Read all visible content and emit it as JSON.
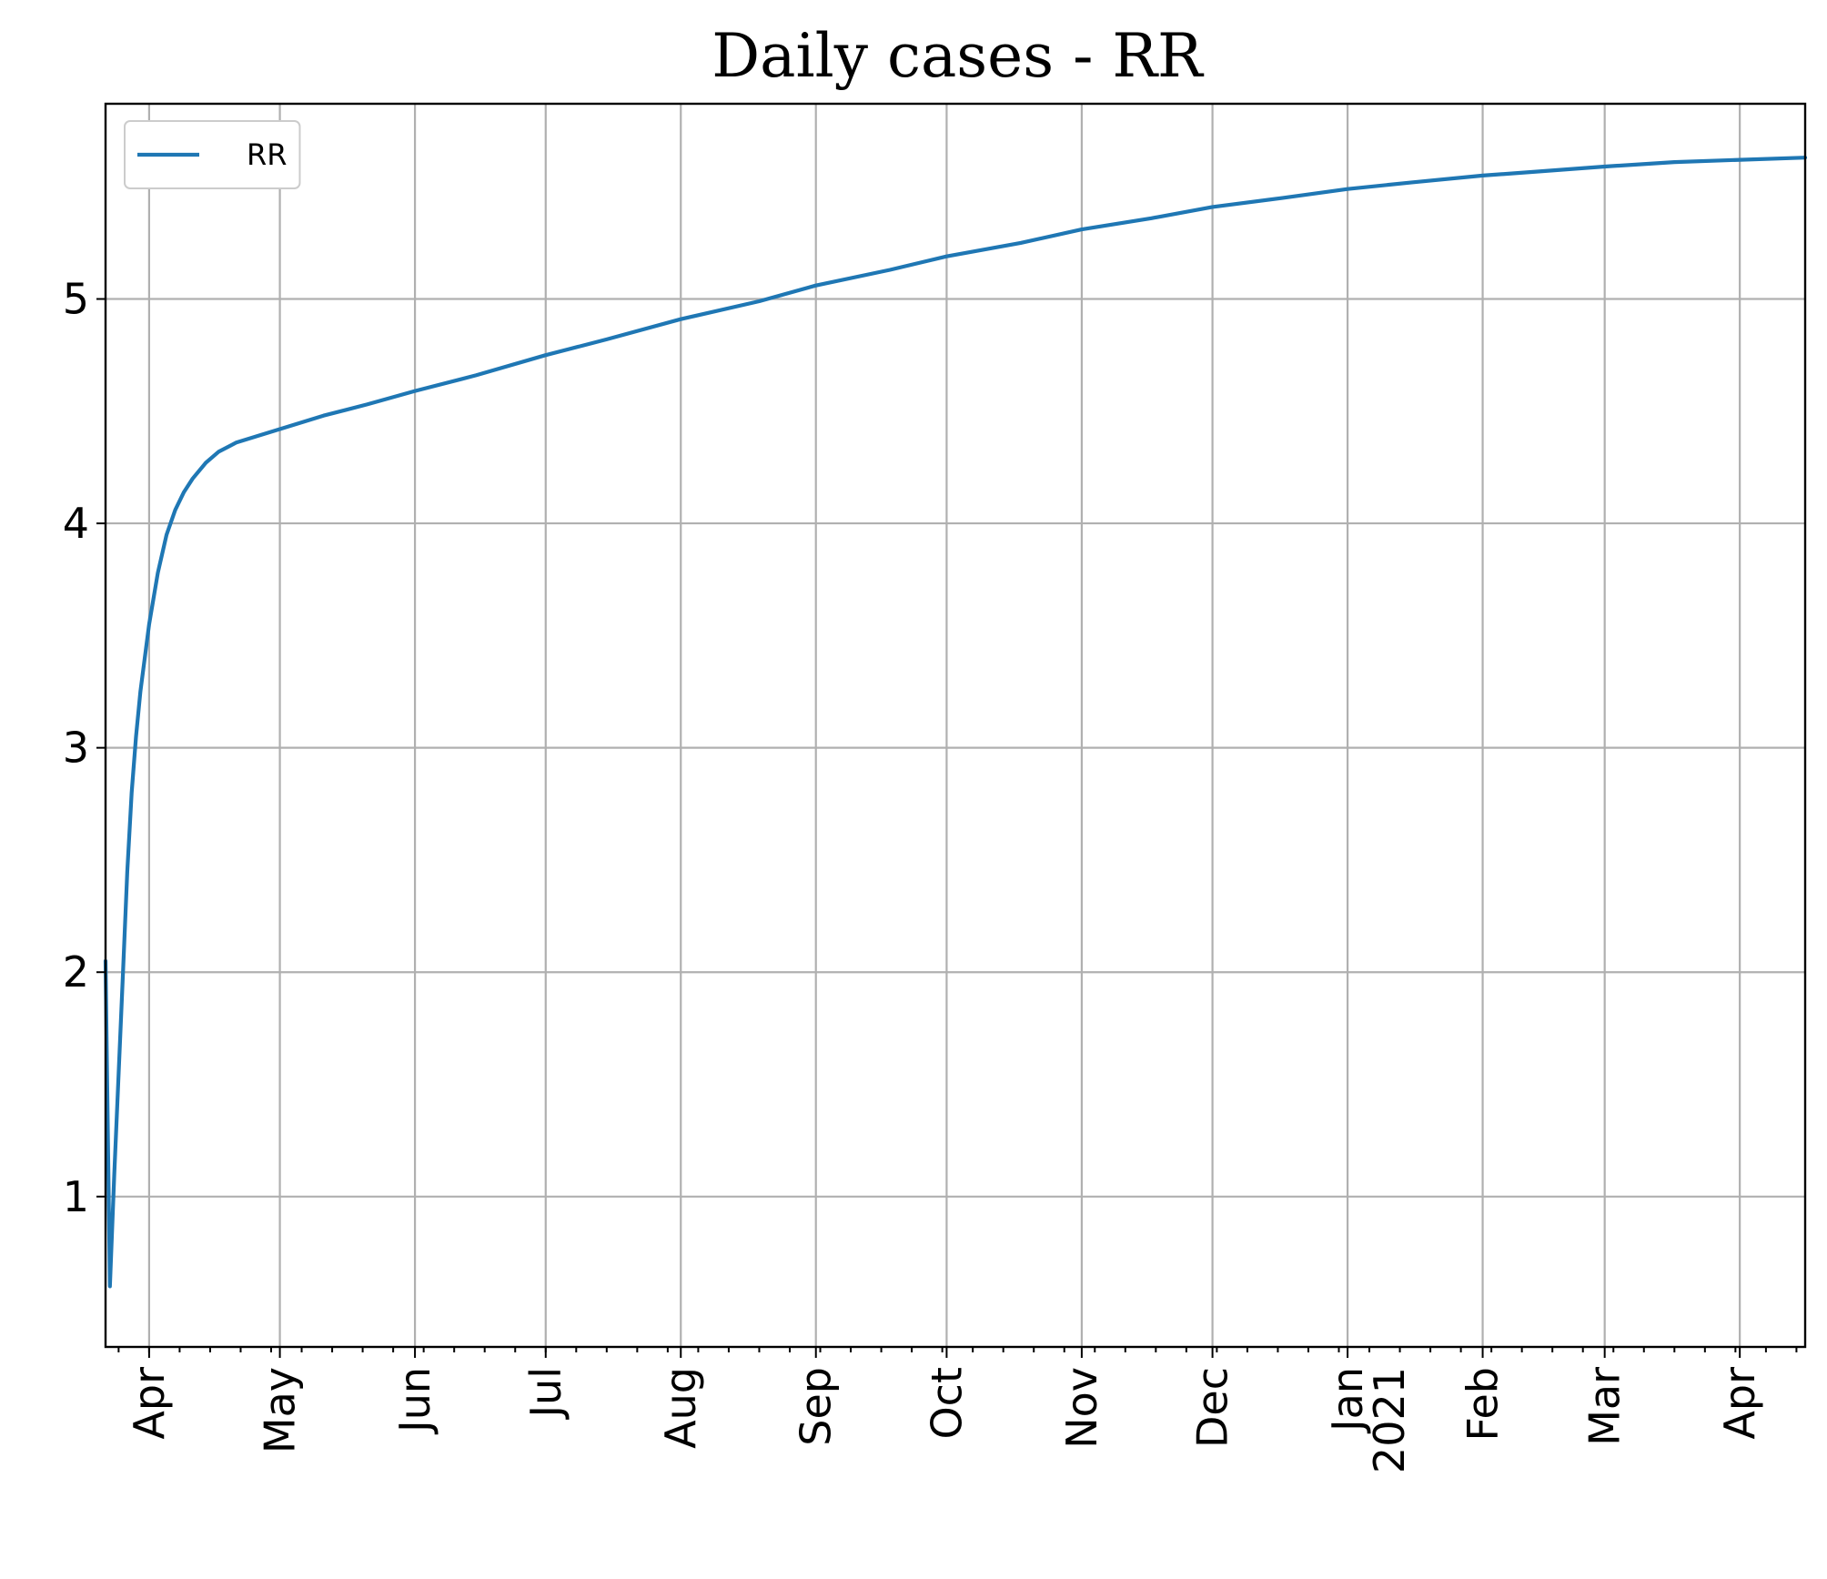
{
  "chart_data": {
    "type": "line",
    "title": "Daily cases - RR",
    "xlabel": "",
    "ylabel": "",
    "ylim": [
      0.33,
      5.87
    ],
    "yticks": [
      1,
      2,
      3,
      4,
      5
    ],
    "ytick_labels": [
      "1",
      "2",
      "3",
      "4",
      "5"
    ],
    "xlim_days": [
      -10,
      380
    ],
    "x_origin": "2020-04-01",
    "xticks": [
      {
        "day": 0,
        "label": "Apr"
      },
      {
        "day": 30,
        "label": "May"
      },
      {
        "day": 61,
        "label": "Jun"
      },
      {
        "day": 91,
        "label": "Jul"
      },
      {
        "day": 122,
        "label": "Aug"
      },
      {
        "day": 153,
        "label": "Sep"
      },
      {
        "day": 183,
        "label": "Oct"
      },
      {
        "day": 214,
        "label": "Nov"
      },
      {
        "day": 244,
        "label": "Dec"
      },
      {
        "day": 275,
        "label": "Jan\n2021"
      },
      {
        "day": 306,
        "label": "Feb"
      },
      {
        "day": 334,
        "label": "Mar"
      },
      {
        "day": 365,
        "label": "Apr"
      }
    ],
    "grid": true,
    "legend": {
      "position": "top-left",
      "entries": [
        "RR"
      ]
    },
    "colors": {
      "RR": "#1f77b4"
    },
    "series": [
      {
        "name": "RR",
        "x_days": [
          -10,
          -9,
          -8,
          -7,
          -6,
          -5,
          -4,
          -3,
          -2,
          -1,
          0,
          2,
          4,
          6,
          8,
          10,
          13,
          16,
          20,
          25,
          30,
          40,
          50,
          61,
          75,
          91,
          105,
          122,
          140,
          153,
          170,
          183,
          200,
          214,
          230,
          244,
          260,
          275,
          290,
          306,
          320,
          334,
          350,
          365,
          380
        ],
        "values": [
          2.05,
          0.6,
          1.1,
          1.55,
          2.0,
          2.45,
          2.8,
          3.05,
          3.25,
          3.4,
          3.55,
          3.78,
          3.95,
          4.06,
          4.14,
          4.2,
          4.27,
          4.32,
          4.36,
          4.39,
          4.42,
          4.48,
          4.53,
          4.59,
          4.66,
          4.75,
          4.82,
          4.91,
          4.99,
          5.06,
          5.13,
          5.19,
          5.25,
          5.31,
          5.36,
          5.41,
          5.45,
          5.49,
          5.52,
          5.55,
          5.57,
          5.59,
          5.61,
          5.62,
          5.63
        ]
      }
    ]
  }
}
